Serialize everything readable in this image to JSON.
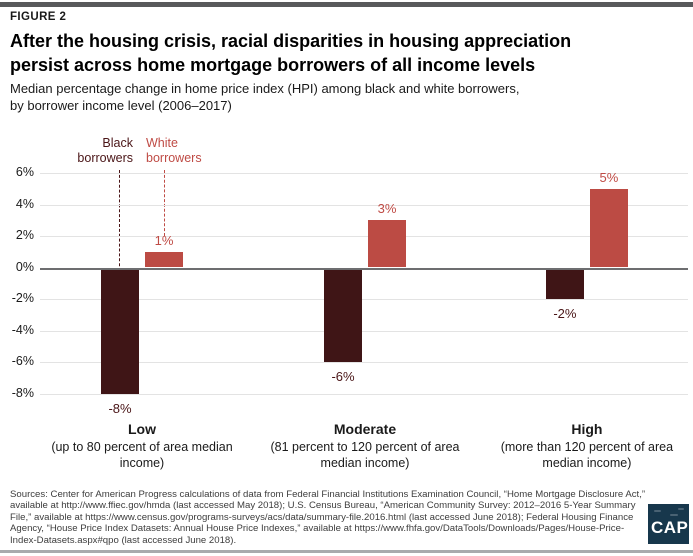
{
  "figure_label": "FIGURE 2",
  "header": {
    "title_lines": [
      "After the housing crisis, racial disparities in housing appreciation",
      "persist across home mortgage borrowers of all income levels"
    ],
    "subtitle_lines": [
      "Median percentage change in home price index (HPI) among black and white borrowers,",
      "by borrower income level (2006–2017)"
    ]
  },
  "legend": {
    "black": {
      "line1": "Black",
      "line2": "borrowers"
    },
    "white": {
      "line1": "White",
      "line2": "borrowers"
    }
  },
  "chart_data": {
    "type": "bar",
    "title": "After the housing crisis, racial disparities in housing appreciation persist across home mortgage borrowers of all income levels",
    "subtitle": "Median percentage change in home price index (HPI) among black and white borrowers, by borrower income level (2006–2017)",
    "categories": [
      {
        "label": "Low",
        "desc": "(up to 80 percent of area median income)"
      },
      {
        "label": "Moderate",
        "desc": "(81 percent to 120 percent of area median income)"
      },
      {
        "label": "High",
        "desc": "(more than 120 percent of area median income)"
      }
    ],
    "series": [
      {
        "name": "Black borrowers",
        "color": "#3f1516",
        "label_color": "#4a1517",
        "values": [
          -8,
          -6,
          -2
        ],
        "value_labels": [
          "-8%",
          "-6%",
          "-2%"
        ]
      },
      {
        "name": "White borrowers",
        "color": "#bc4b44",
        "label_color": "#bf4b45",
        "values": [
          1,
          3,
          5
        ],
        "value_labels": [
          "1%",
          "3%",
          "5%"
        ]
      }
    ],
    "ylim": [
      -8,
      6
    ],
    "ytick_values": [
      6,
      4,
      2,
      0,
      -2,
      -4,
      -6,
      -8
    ],
    "ytick_labels": [
      "6%",
      "4%",
      "2%",
      "0%",
      "-2%",
      "-4%",
      "-6%",
      "-8%"
    ],
    "grid": true,
    "legend_position": "top-left"
  },
  "sources": "Sources: Center for American Progress calculations of data from Federal Financial Institutions Examination Council, “Home Mortgage Disclosure Act,” available at http://www.ffiec.gov/hmda (last accessed May 2018); U.S. Census Bureau, “American Community Survey: 2012–2016 5-Year Summary File,” available at https://www.census.gov/programs-surveys/acs/data/summary-file.2016.html (last accessed June 2018); Federal Housing Finance Agency, “House Price Index Datasets: Annual House Price Indexes,” available at https://www.fhfa.gov/DataTools/Downloads/Pages/House-Price-Index-Datasets.aspx#qpo (last accessed June 2018).",
  "logo_text": "CAP",
  "colors": {
    "dark_maroon": "#3f1516",
    "accent_red": "#bc4b44",
    "grid": "#e3e3e3",
    "zero_line": "#6d6e70",
    "top_rule": "#58595b",
    "bottom_rule": "#a8aaad",
    "logo_bg": "#17374c"
  }
}
